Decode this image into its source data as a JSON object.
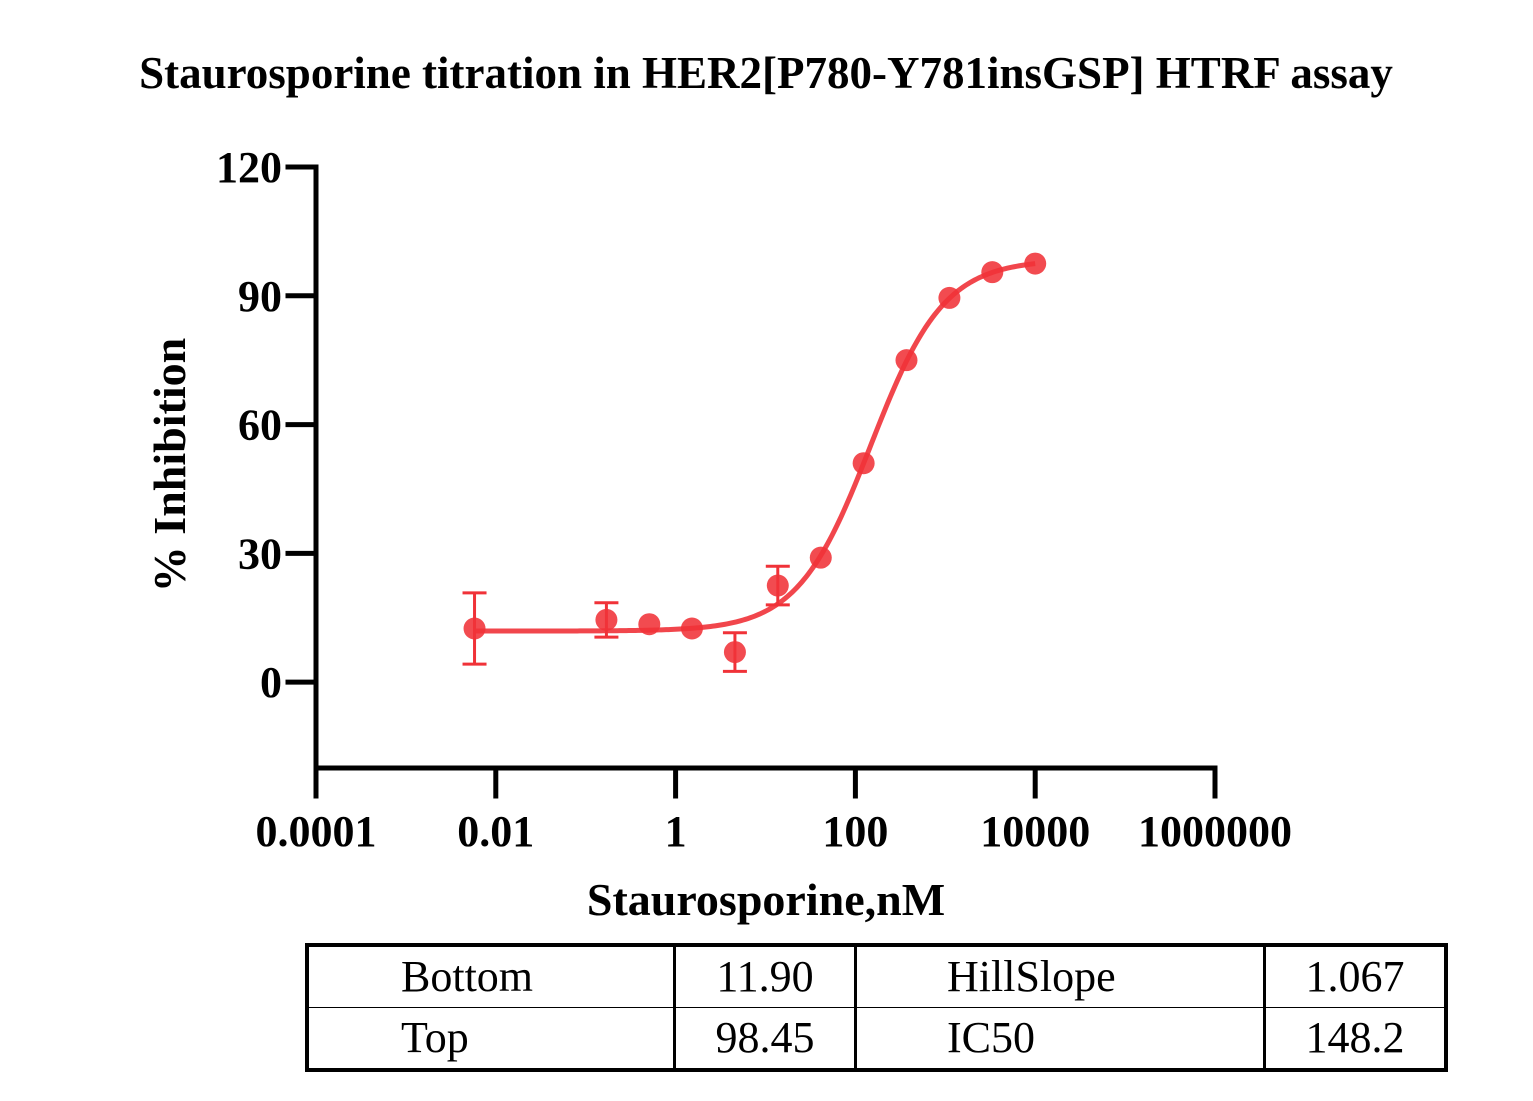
{
  "chart_data": {
    "type": "scatter",
    "title": "Staurosporine titration in HER2[P780-Y781insGSP] HTRF assay",
    "xlabel": "Staurosporine,nM",
    "ylabel": "% Inhibition",
    "x_scale": "log10",
    "xlim": [
      0.0001,
      1000000
    ],
    "ylim": [
      -20,
      120
    ],
    "x_ticks": [
      0.0001,
      0.01,
      1,
      100,
      10000,
      1000000
    ],
    "x_tick_labels": [
      "0.0001",
      "0.01",
      "1",
      "100",
      "10000",
      "1000000"
    ],
    "y_ticks": [
      0,
      30,
      60,
      90,
      120
    ],
    "y_tick_labels": [
      "0",
      "30",
      "60",
      "90",
      "120"
    ],
    "grid": false,
    "color": "#f03238",
    "series": [
      {
        "points": [
          {
            "x": 0.0058,
            "y": 12.5,
            "err": 8.3
          },
          {
            "x": 0.17,
            "y": 14.5,
            "err": 4.0
          },
          {
            "x": 0.51,
            "y": 13.5,
            "err": 0
          },
          {
            "x": 1.52,
            "y": 12.5,
            "err": 0
          },
          {
            "x": 4.57,
            "y": 7.0,
            "err": 4.5
          },
          {
            "x": 13.7,
            "y": 22.5,
            "err": 4.5
          },
          {
            "x": 41.2,
            "y": 29.0,
            "err": 0
          },
          {
            "x": 123.5,
            "y": 51.0,
            "err": 0
          },
          {
            "x": 370,
            "y": 75.0,
            "err": 0
          },
          {
            "x": 1111,
            "y": 89.5,
            "err": 0
          },
          {
            "x": 3333,
            "y": 95.5,
            "err": 0
          },
          {
            "x": 10000,
            "y": 97.5,
            "err": 0
          }
        ]
      }
    ],
    "fit": {
      "model": "four-parameter logistic",
      "bottom": 11.9,
      "top": 98.45,
      "hill_slope": 1.067,
      "ic50": 148.2,
      "x_range": [
        0.0058,
        10000
      ]
    }
  },
  "table": {
    "rows": [
      {
        "name1": "Bottom",
        "val1": "11.90",
        "name2": "HillSlope",
        "val2": "1.067"
      },
      {
        "name1": "Top",
        "val1": "98.45",
        "name2": "IC50",
        "val2": "148.2"
      }
    ]
  }
}
